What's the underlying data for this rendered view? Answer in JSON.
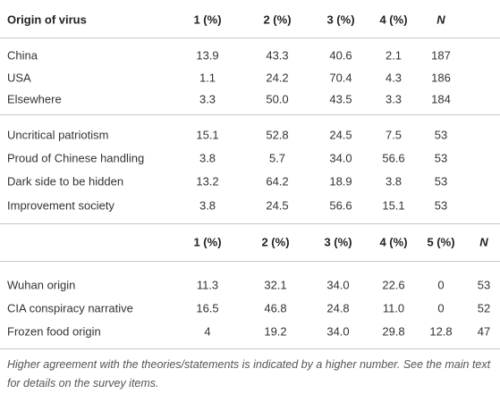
{
  "sections": [
    {
      "header": [
        "Origin of virus",
        "1 (%)",
        "2 (%)",
        "3 (%)",
        "4 (%)",
        "N"
      ],
      "row_groups": [
        [
          [
            "China",
            "13.9",
            "43.3",
            "40.6",
            "2.1",
            "187"
          ],
          [
            "USA",
            "1.1",
            "24.2",
            "70.4",
            "4.3",
            "186"
          ],
          [
            "Elsewhere",
            "3.3",
            "50.0",
            "43.5",
            "3.3",
            "184"
          ]
        ],
        [
          [
            "Uncritical patriotism",
            "15.1",
            "52.8",
            "24.5",
            "7.5",
            "53"
          ],
          [
            "Proud of Chinese handling",
            "3.8",
            "5.7",
            "34.0",
            "56.6",
            "53"
          ],
          [
            "Dark side to be hidden",
            "13.2",
            "64.2",
            "18.9",
            "3.8",
            "53"
          ],
          [
            "Improvement society",
            "3.8",
            "24.5",
            "56.6",
            "15.1",
            "53"
          ]
        ]
      ]
    },
    {
      "header": [
        "",
        "1 (%)",
        "2 (%)",
        "3 (%)",
        "4 (%)",
        "5 (%)",
        "N"
      ],
      "row_groups": [
        [
          [
            "Wuhan origin",
            "11.3",
            "32.1",
            "34.0",
            "22.6",
            "0",
            "53"
          ],
          [
            "CIA conspiracy narrative",
            "16.5",
            "46.8",
            "24.8",
            "11.0",
            "0",
            "52"
          ],
          [
            "Frozen food origin",
            "4",
            "19.2",
            "34.0",
            "29.8",
            "12.8",
            "47"
          ]
        ]
      ]
    }
  ],
  "note": "Higher agreement with the theories/statements is indicated by a higher number. See the main text for details on the survey items."
}
